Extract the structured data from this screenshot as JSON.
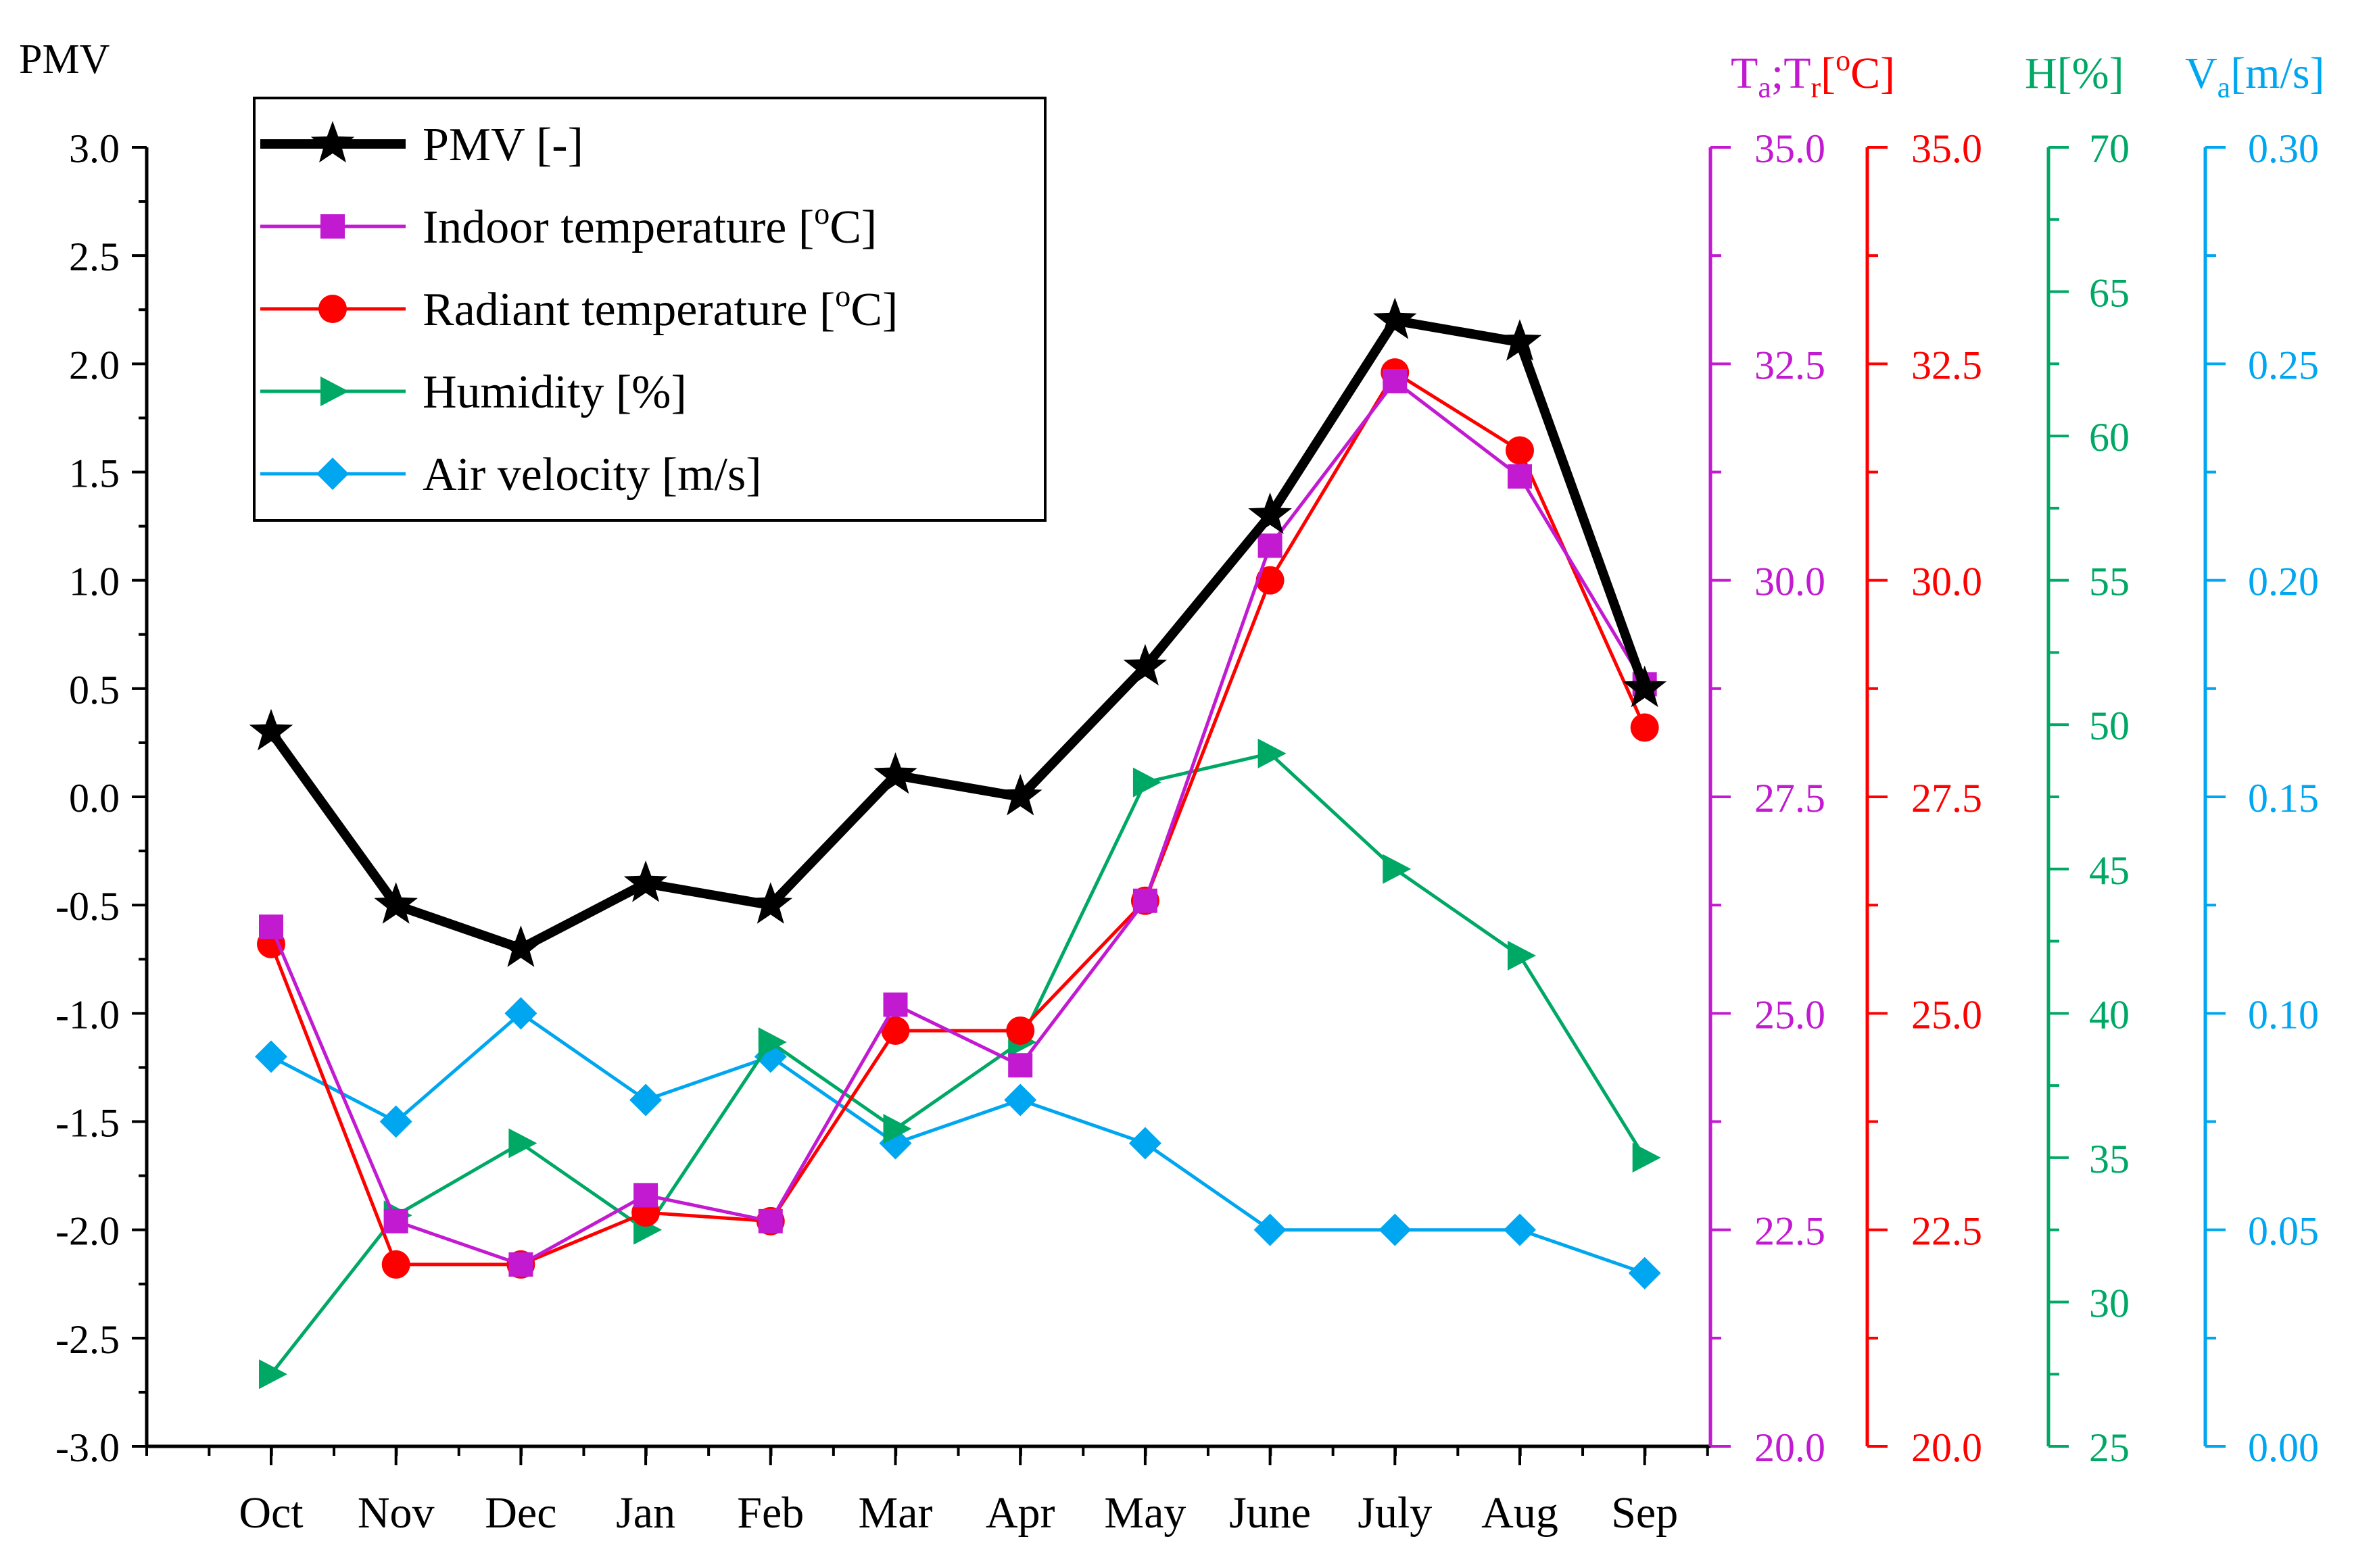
{
  "colors": {
    "pmv": "#000000",
    "indoor": "#c21ad1",
    "radiant": "#ff0000",
    "humidity": "#00a865",
    "air": "#00a6ef"
  },
  "chart_data": {
    "type": "line",
    "x": [
      "Oct",
      "Nov",
      "Dec",
      "Jan",
      "Feb",
      "Mar",
      "Apr",
      "May",
      "June",
      "July",
      "Aug",
      "Sep"
    ],
    "axes": {
      "pmv": {
        "label": "PMV",
        "ylim": [
          -3.0,
          3.0
        ],
        "ticks": [
          "3.0",
          "2.5",
          "2.0",
          "1.5",
          "1.0",
          "0.5",
          "0.0",
          "-0.5",
          "-1.0",
          "-1.5",
          "-2.0",
          "-2.5",
          "-3.0"
        ]
      },
      "ta": {
        "ylim": [
          20.0,
          35.0
        ],
        "ticks": [
          "35.0",
          "32.5",
          "30.0",
          "27.5",
          "25.0",
          "22.5",
          "20.0"
        ]
      },
      "tr": {
        "ylim": [
          20.0,
          35.0
        ],
        "ticks": [
          "35.0",
          "32.5",
          "30.0",
          "27.5",
          "25.0",
          "22.5",
          "20.0"
        ]
      },
      "h": {
        "ylim": [
          25,
          70
        ],
        "ticks": [
          "70",
          "65",
          "60",
          "55",
          "50",
          "45",
          "40",
          "35",
          "30",
          "25"
        ]
      },
      "va": {
        "ylim": [
          0.0,
          0.3
        ],
        "ticks": [
          "0.30",
          "0.25",
          "0.20",
          "0.15",
          "0.10",
          "0.05",
          "0.00"
        ]
      }
    },
    "axis_titles": {
      "ta_tr": {
        "t1": "T",
        "s1": "a",
        "mid": ";T",
        "s2": "r",
        "tail": "[",
        "sup": "o",
        "end": "C]"
      },
      "h": "H[%]",
      "va": {
        "t": "V",
        "s": "a",
        "end": "[m/s]"
      }
    },
    "legend": {
      "placement": "top-left",
      "items": [
        {
          "key": "pmv",
          "label": "PMV [-]",
          "marker": "star"
        },
        {
          "key": "indoor",
          "label": "Indoor temperature [",
          "sup": "o",
          "tail": "C]",
          "marker": "square"
        },
        {
          "key": "radiant",
          "label": "Radiant temperature [",
          "sup": "o",
          "tail": "C]",
          "marker": "circle"
        },
        {
          "key": "humidity",
          "label": "Humidity [%]",
          "marker": "triangle-right"
        },
        {
          "key": "air",
          "label": "Air velocity [m/s]",
          "marker": "diamond"
        }
      ]
    },
    "series": [
      {
        "key": "pmv",
        "name": "PMV [-]",
        "axis": "pmv",
        "values": [
          0.3,
          -0.5,
          -0.7,
          -0.4,
          -0.5,
          0.1,
          0.0,
          0.6,
          1.3,
          2.2,
          2.1,
          0.5
        ]
      },
      {
        "key": "indoor",
        "name": "Indoor temperature",
        "axis": "ta",
        "values": [
          26.0,
          22.6,
          22.1,
          22.9,
          22.6,
          25.1,
          24.4,
          26.3,
          30.4,
          32.3,
          31.2,
          28.8
        ]
      },
      {
        "key": "radiant",
        "name": "Radiant temperature",
        "axis": "tr",
        "values": [
          25.8,
          22.1,
          22.1,
          22.7,
          22.6,
          24.8,
          24.8,
          26.3,
          30.0,
          32.4,
          31.5,
          28.3
        ]
      },
      {
        "key": "humidity",
        "name": "Humidity",
        "axis": "h",
        "values": [
          27.5,
          33.0,
          35.5,
          32.5,
          39.0,
          36.0,
          39.0,
          48.0,
          49.0,
          45.0,
          42.0,
          35.0
        ]
      },
      {
        "key": "air",
        "name": "Air velocity",
        "axis": "va",
        "values": [
          0.09,
          0.075,
          0.1,
          0.08,
          0.09,
          0.07,
          0.08,
          0.07,
          0.05,
          0.05,
          0.05,
          0.04
        ]
      }
    ]
  }
}
